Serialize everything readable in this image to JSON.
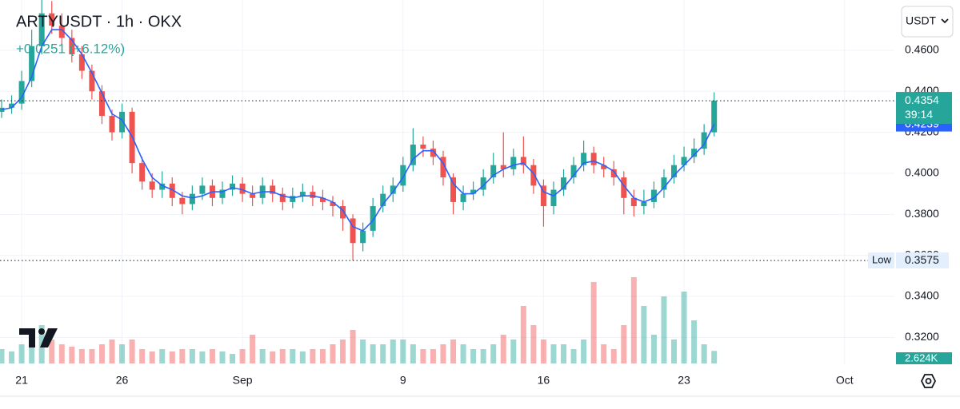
{
  "chart_data": {
    "type": "candlestick",
    "title": "ARTYUSDT · 1h · OKX",
    "subtitle": "+0.0251 (+6.12%)",
    "currency_button": "USDT",
    "countdown": "39:14",
    "low_label": "Low",
    "volume_last_label": "2.624K",
    "up_color": "#26a69a",
    "down_color": "#ef5350",
    "grid": true,
    "x": [
      20,
      20.5,
      21,
      21.5,
      22,
      22.5,
      23,
      23.5,
      24,
      24.5,
      25,
      25.5,
      26,
      26.5,
      27,
      27.5,
      28,
      28.5,
      29,
      29.5,
      30,
      30.5,
      31,
      31.5,
      32,
      32.5,
      33,
      33.5,
      34,
      34.5,
      35,
      35.5,
      36,
      36.5,
      37,
      37.5,
      38,
      38.5,
      39,
      39.5,
      40,
      40.5,
      41,
      41.5,
      42,
      42.5,
      43,
      43.5,
      44,
      44.5,
      45,
      45.5,
      46,
      46.5,
      47,
      47.5,
      48,
      48.5,
      49,
      49.5,
      50,
      50.5,
      51,
      51.5,
      52,
      52.5,
      53,
      53.5,
      54,
      54.5,
      55,
      55.5
    ],
    "open": [
      0.43,
      0.432,
      0.434,
      0.445,
      0.462,
      0.478,
      0.472,
      0.466,
      0.458,
      0.45,
      0.44,
      0.428,
      0.42,
      0.43,
      0.405,
      0.396,
      0.392,
      0.395,
      0.388,
      0.385,
      0.39,
      0.394,
      0.388,
      0.392,
      0.395,
      0.39,
      0.388,
      0.394,
      0.39,
      0.386,
      0.389,
      0.391,
      0.388,
      0.386,
      0.384,
      0.378,
      0.366,
      0.372,
      0.384,
      0.39,
      0.394,
      0.404,
      0.414,
      0.412,
      0.408,
      0.398,
      0.386,
      0.39,
      0.392,
      0.398,
      0.404,
      0.402,
      0.408,
      0.404,
      0.394,
      0.384,
      0.392,
      0.398,
      0.404,
      0.41,
      0.404,
      0.402,
      0.398,
      0.388,
      0.384,
      0.386,
      0.392,
      0.398,
      0.404,
      0.408,
      0.412,
      0.42
    ],
    "high": [
      0.436,
      0.438,
      0.45,
      0.47,
      0.486,
      0.484,
      0.478,
      0.47,
      0.462,
      0.453,
      0.443,
      0.431,
      0.434,
      0.432,
      0.408,
      0.4,
      0.401,
      0.398,
      0.391,
      0.394,
      0.398,
      0.397,
      0.396,
      0.399,
      0.398,
      0.394,
      0.398,
      0.397,
      0.393,
      0.393,
      0.395,
      0.394,
      0.392,
      0.389,
      0.387,
      0.38,
      0.376,
      0.388,
      0.394,
      0.398,
      0.408,
      0.422,
      0.418,
      0.416,
      0.411,
      0.4,
      0.394,
      0.396,
      0.402,
      0.41,
      0.42,
      0.412,
      0.418,
      0.407,
      0.397,
      0.396,
      0.402,
      0.408,
      0.416,
      0.413,
      0.408,
      0.406,
      0.401,
      0.392,
      0.392,
      0.396,
      0.402,
      0.409,
      0.413,
      0.417,
      0.424,
      0.4395
    ],
    "low": [
      0.427,
      0.429,
      0.431,
      0.442,
      0.458,
      0.468,
      0.462,
      0.454,
      0.446,
      0.436,
      0.424,
      0.416,
      0.417,
      0.4,
      0.392,
      0.388,
      0.388,
      0.384,
      0.38,
      0.382,
      0.387,
      0.384,
      0.385,
      0.389,
      0.386,
      0.384,
      0.385,
      0.386,
      0.382,
      0.383,
      0.386,
      0.384,
      0.382,
      0.379,
      0.372,
      0.3575,
      0.362,
      0.369,
      0.381,
      0.386,
      0.391,
      0.401,
      0.408,
      0.404,
      0.394,
      0.38,
      0.382,
      0.387,
      0.389,
      0.395,
      0.398,
      0.399,
      0.4,
      0.39,
      0.374,
      0.38,
      0.389,
      0.395,
      0.401,
      0.4,
      0.398,
      0.394,
      0.38,
      0.379,
      0.38,
      0.383,
      0.388,
      0.395,
      0.401,
      0.405,
      0.409,
      0.418
    ],
    "close": [
      0.432,
      0.434,
      0.445,
      0.462,
      0.478,
      0.472,
      0.466,
      0.458,
      0.45,
      0.44,
      0.428,
      0.42,
      0.43,
      0.405,
      0.396,
      0.392,
      0.395,
      0.388,
      0.385,
      0.39,
      0.394,
      0.388,
      0.392,
      0.395,
      0.39,
      0.388,
      0.394,
      0.39,
      0.386,
      0.389,
      0.391,
      0.388,
      0.386,
      0.384,
      0.378,
      0.366,
      0.372,
      0.384,
      0.39,
      0.394,
      0.404,
      0.414,
      0.412,
      0.408,
      0.398,
      0.386,
      0.39,
      0.392,
      0.398,
      0.404,
      0.402,
      0.408,
      0.404,
      0.394,
      0.384,
      0.392,
      0.398,
      0.404,
      0.41,
      0.404,
      0.402,
      0.398,
      0.388,
      0.384,
      0.386,
      0.392,
      0.398,
      0.404,
      0.408,
      0.412,
      0.42,
      0.4354
    ],
    "volume": [
      3,
      2.5,
      4,
      6,
      8,
      5,
      4,
      3.5,
      3,
      3,
      4,
      5,
      4,
      5,
      3,
      2.5,
      3,
      2.5,
      3,
      3,
      2.5,
      3,
      2.5,
      2,
      3,
      6,
      3,
      2.5,
      3,
      3,
      2.5,
      3,
      3,
      4,
      5,
      7,
      5,
      4,
      4,
      5,
      5,
      4,
      3,
      3,
      4,
      5,
      4,
      3,
      3,
      4,
      6,
      5,
      12,
      8,
      5,
      4,
      4,
      3,
      5,
      17,
      4,
      3,
      8,
      18,
      12,
      6,
      14,
      5,
      15,
      9,
      4,
      2.624
    ],
    "volume_ylim": [
      0,
      20
    ],
    "ma": {
      "color": "#2962ff",
      "values": [
        0.431,
        0.432,
        0.437,
        0.447,
        0.462,
        0.47,
        0.47,
        0.465,
        0.458,
        0.449,
        0.439,
        0.429,
        0.426,
        0.418,
        0.407,
        0.398,
        0.394,
        0.392,
        0.389,
        0.388,
        0.389,
        0.391,
        0.391,
        0.393,
        0.392,
        0.39,
        0.391,
        0.391,
        0.389,
        0.388,
        0.389,
        0.389,
        0.388,
        0.386,
        0.382,
        0.374,
        0.372,
        0.377,
        0.385,
        0.391,
        0.398,
        0.407,
        0.411,
        0.411,
        0.405,
        0.395,
        0.39,
        0.39,
        0.394,
        0.399,
        0.402,
        0.404,
        0.405,
        0.4,
        0.391,
        0.389,
        0.393,
        0.399,
        0.405,
        0.406,
        0.404,
        0.401,
        0.394,
        0.388,
        0.386,
        0.388,
        0.393,
        0.399,
        0.404,
        0.409,
        0.414,
        0.4239
      ]
    },
    "xlim": [
      19.92,
      64.48
    ],
    "xticks": [
      {
        "value": 21,
        "label": "21"
      },
      {
        "value": 26,
        "label": "26"
      },
      {
        "value": 32,
        "label": "Sep"
      },
      {
        "value": 40,
        "label": "9"
      },
      {
        "value": 47,
        "label": "16"
      },
      {
        "value": 54,
        "label": "23"
      },
      {
        "value": 62,
        "label": "Oct"
      }
    ],
    "ylim": [
      0.3073,
      0.4845
    ],
    "yticks": [
      {
        "value": 0.46,
        "label": "0.4600"
      },
      {
        "value": 0.44,
        "label": "0.4400"
      },
      {
        "value": 0.42,
        "label": "0.4200"
      },
      {
        "value": 0.4,
        "label": "0.4000"
      },
      {
        "value": 0.38,
        "label": "0.3800"
      },
      {
        "value": 0.36,
        "label": "0.3600"
      },
      {
        "value": 0.34,
        "label": "0.3400"
      },
      {
        "value": 0.32,
        "label": "0.3200"
      }
    ]
  }
}
